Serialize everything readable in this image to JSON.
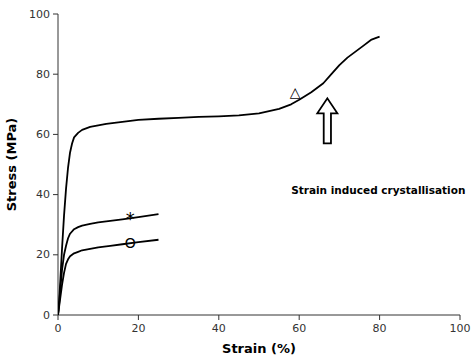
{
  "chart_data": {
    "type": "line",
    "xlabel": "Strain (%)",
    "ylabel": "Stress (MPa)",
    "xlim": [
      0,
      100
    ],
    "ylim": [
      0,
      100
    ],
    "xticks": [
      0,
      20,
      40,
      60,
      80,
      100
    ],
    "yticks": [
      0,
      20,
      40,
      60,
      80,
      100
    ],
    "grid": false,
    "series": [
      {
        "color": "#000000",
        "x": [
          0,
          0.3,
          0.6,
          1.0,
          1.5,
          2.0,
          2.5,
          3.0,
          3.5,
          4.0,
          5.0,
          6.0,
          7.0,
          8.0,
          10.0,
          12.0,
          15.0,
          20.0,
          25.0,
          30.0,
          35.0,
          40.0,
          45.0,
          50.0,
          55.0,
          58.0,
          60.0,
          63.0,
          66.0,
          68.0,
          70.0,
          72.0,
          74.0,
          76.0,
          78.0,
          80.0
        ],
        "values": [
          0,
          5,
          12,
          22,
          33,
          42,
          49,
          54,
          57,
          59,
          60.5,
          61.5,
          62,
          62.5,
          63,
          63.5,
          64,
          64.8,
          65.2,
          65.5,
          65.8,
          66.0,
          66.3,
          67.0,
          68.5,
          70.0,
          71.5,
          74.0,
          77.0,
          80.0,
          83.0,
          85.5,
          87.5,
          89.5,
          91.5,
          92.5
        ]
      },
      {
        "color": "#000000",
        "x": [
          0,
          0.3,
          0.6,
          1.0,
          1.5,
          2.0,
          2.5,
          3.0,
          4.0,
          5.0,
          6.0,
          8.0,
          10.0,
          13.0,
          16.0,
          20.0,
          25.0
        ],
        "values": [
          0,
          4,
          9,
          15,
          20,
          23,
          25.5,
          27.0,
          28.5,
          29.2,
          29.7,
          30.3,
          30.8,
          31.3,
          31.8,
          32.5,
          33.5
        ]
      },
      {
        "color": "#000000",
        "x": [
          0,
          0.3,
          0.6,
          1.0,
          1.5,
          2.0,
          2.5,
          3.0,
          4.0,
          5.0,
          6.0,
          8.0,
          10.0,
          13.0,
          16.0,
          20.0,
          25.0
        ],
        "values": [
          0,
          3,
          6,
          10,
          14,
          17,
          18.5,
          19.5,
          20.5,
          21.0,
          21.5,
          22.0,
          22.5,
          23.0,
          23.5,
          24.2,
          25.0
        ]
      }
    ],
    "annotations": [
      {
        "text": "△",
        "x": 59,
        "y": 74
      },
      {
        "text": "*",
        "x": 18,
        "y": 32
      },
      {
        "text": "O",
        "x": 18,
        "y": 24
      },
      {
        "text": "Strain induced crystallisation",
        "x": 58,
        "y": 43
      }
    ],
    "arrows": [
      {
        "x": 67,
        "y_from": 57,
        "y_to": 72
      }
    ]
  }
}
